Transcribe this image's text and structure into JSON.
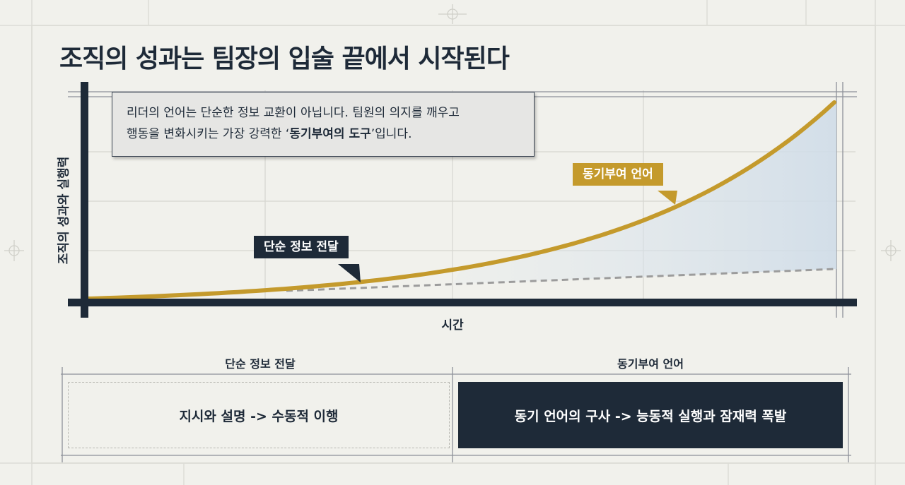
{
  "title": "조직의 성과는 팀장의 입술 끝에서 시작된다",
  "callout": {
    "line1": "리더의 언어는 단순한 정보 교환이 아닙니다. 팀원의 의지를 깨우고",
    "line2_prefix": "행동을 변화시키는 가장 강력한 ‘",
    "line2_emphasis": "동기부여의 도구",
    "line2_suffix": "’입니다."
  },
  "chart_data": {
    "type": "line",
    "ylabel": "조직의 성과와 실행력",
    "xlabel": "시간",
    "series": [
      {
        "name": "동기부여 언어",
        "style": "solid",
        "color": "#c49a2c",
        "shape": "exponential"
      },
      {
        "name": "단순 정보 전달",
        "style": "dashed",
        "color": "#9c9c9c",
        "shape": "linear"
      }
    ],
    "annotations": [
      "단순 정보 전달",
      "동기부여 언어"
    ]
  },
  "comparison": {
    "left": {
      "header": "단순 정보 전달",
      "text": "지시와 설명 -> 수동적 이행"
    },
    "right": {
      "header": "동기부여 언어",
      "text": "동기 언어의 구사 -> 능동적 실행과 잠재력 폭발"
    }
  },
  "colors": {
    "navy": "#1e2a38",
    "gold": "#c49a2c",
    "background": "#f1f1ec"
  }
}
